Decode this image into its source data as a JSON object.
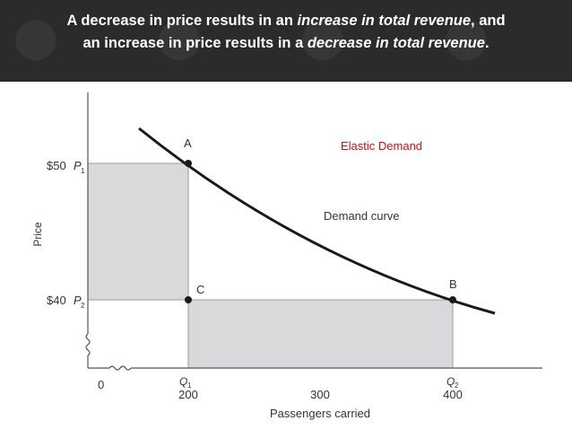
{
  "banner": {
    "part1": "A decrease in price results in an ",
    "part2_italic": "increase in total revenue",
    "part3": ", and",
    "part4": "an increase in price results in a ",
    "part5_italic": "decrease in total revenue",
    "part6": "."
  },
  "diagram": {
    "y_axis_label": "Price",
    "x_axis_label": "Passengers carried",
    "price_high": "$50",
    "price_high_sym": "P",
    "price_high_sub": "1",
    "price_low": "$40",
    "price_low_sym": "P",
    "price_low_sub": "2",
    "origin": "0",
    "q1_sym": "Q",
    "q1_sub": "1",
    "q1_value": "200",
    "mid_tick": "300",
    "q2_sym": "Q",
    "q2_sub": "2",
    "q2_value": "400",
    "point_a": "A",
    "point_b": "B",
    "point_c": "C",
    "curve_label": "Demand curve",
    "elastic_label": "Elastic Demand",
    "elastic_color": "#cc1111",
    "shade_color": "#d9d9dc"
  }
}
